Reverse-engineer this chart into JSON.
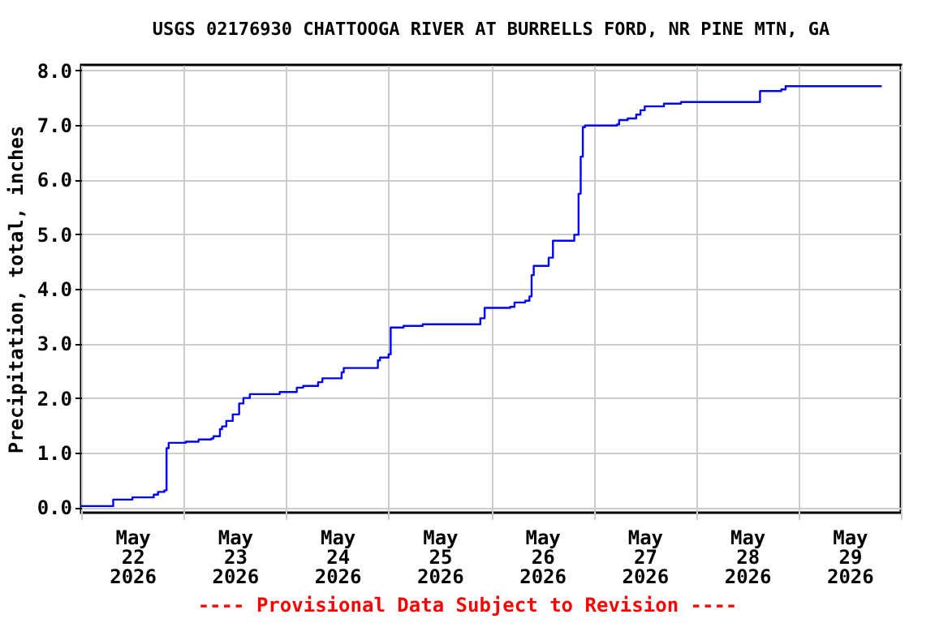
{
  "chart_data": {
    "type": "step",
    "title": "USGS 02176930 CHATTOOGA RIVER AT BURRELLS FORD, NR PINE MTN, GA",
    "ylabel": "Precipitation, total, inches",
    "annotations": [
      "---- Provisional Data Subject to Revision ----"
    ],
    "x": [
      "2026-05-22T00:00",
      "2026-05-22T07:30",
      "2026-05-22T12:00",
      "2026-05-22T17:00",
      "2026-05-22T18:00",
      "2026-05-22T19:30",
      "2026-05-22T20:00",
      "2026-05-22T20:30",
      "2026-05-23T00:30",
      "2026-05-23T03:30",
      "2026-05-23T06:30",
      "2026-05-23T07:00",
      "2026-05-23T08:30",
      "2026-05-23T09:00",
      "2026-05-23T10:00",
      "2026-05-23T11:30",
      "2026-05-23T13:00",
      "2026-05-23T14:00",
      "2026-05-23T15:30",
      "2026-05-23T22:30",
      "2026-05-24T02:30",
      "2026-05-24T04:00",
      "2026-05-24T07:30",
      "2026-05-24T08:30",
      "2026-05-24T13:00",
      "2026-05-24T13:30",
      "2026-05-24T21:30",
      "2026-05-24T22:00",
      "2026-05-25T00:00",
      "2026-05-25T00:30",
      "2026-05-25T03:30",
      "2026-05-25T08:00",
      "2026-05-25T21:30",
      "2026-05-25T22:30",
      "2026-05-26T04:30",
      "2026-05-26T05:30",
      "2026-05-26T08:00",
      "2026-05-26T09:00",
      "2026-05-26T09:30",
      "2026-05-26T10:00",
      "2026-05-26T13:30",
      "2026-05-26T14:30",
      "2026-05-26T19:30",
      "2026-05-26T20:30",
      "2026-05-26T21:00",
      "2026-05-26T21:30",
      "2026-05-26T22:00",
      "2026-05-27T05:30",
      "2026-05-27T06:00",
      "2026-05-27T08:00",
      "2026-05-27T10:00",
      "2026-05-27T11:00",
      "2026-05-27T12:00",
      "2026-05-27T16:30",
      "2026-05-27T20:30",
      "2026-05-28T15:00",
      "2026-05-28T20:00",
      "2026-05-28T21:00",
      "2026-05-29T19:30"
    ],
    "series": [
      {
        "color": "#0000ff",
        "values": [
          0.02,
          0.14,
          0.18,
          0.23,
          0.28,
          0.31,
          1.08,
          1.18,
          1.2,
          1.24,
          1.26,
          1.3,
          1.43,
          1.48,
          1.58,
          1.7,
          1.9,
          2.0,
          2.07,
          2.11,
          2.19,
          2.22,
          2.29,
          2.36,
          2.47,
          2.55,
          2.69,
          2.74,
          2.8,
          3.29,
          3.32,
          3.35,
          3.46,
          3.65,
          3.67,
          3.75,
          3.78,
          3.86,
          4.25,
          4.42,
          4.57,
          4.88,
          4.99,
          5.74,
          6.42,
          6.96,
          6.99,
          7.01,
          7.09,
          7.12,
          7.19,
          7.27,
          7.34,
          7.39,
          7.42,
          7.62,
          7.65,
          7.71,
          7.71
        ]
      }
    ],
    "xlim": [
      "2026-05-22T00:00",
      "2026-05-30T00:00"
    ],
    "xticks": [
      {
        "value": "2026-05-22T00:00",
        "label": null
      },
      {
        "value": "2026-05-23T00:00",
        "label": null
      },
      {
        "value": "2026-05-24T00:00",
        "label": null
      },
      {
        "value": "2026-05-25T00:00",
        "label": null
      },
      {
        "value": "2026-05-26T00:00",
        "label": null
      },
      {
        "value": "2026-05-27T00:00",
        "label": null
      },
      {
        "value": "2026-05-28T00:00",
        "label": null
      },
      {
        "value": "2026-05-29T00:00",
        "label": null
      },
      {
        "value": "2026-05-30T00:00",
        "label": null
      },
      {
        "value": "2026-05-22T12:00",
        "label": "May 22 2026"
      },
      {
        "value": "2026-05-23T12:00",
        "label": "May 23 2026"
      },
      {
        "value": "2026-05-24T12:00",
        "label": "May 24 2026"
      },
      {
        "value": "2026-05-25T12:00",
        "label": "May 25 2026"
      },
      {
        "value": "2026-05-26T12:00",
        "label": "May 26 2026"
      },
      {
        "value": "2026-05-27T12:00",
        "label": "May 27 2026"
      },
      {
        "value": "2026-05-28T12:00",
        "label": "May 28 2026"
      },
      {
        "value": "2026-05-29T12:00",
        "label": "May 29 2026"
      }
    ],
    "ylim": [
      -0.1,
      8.1
    ],
    "yticks": [
      {
        "value": 0,
        "label": "0.0"
      },
      {
        "value": 1,
        "label": "1.0"
      },
      {
        "value": 2,
        "label": "2.0"
      },
      {
        "value": 3,
        "label": "3.0"
      },
      {
        "value": 4,
        "label": "4.0"
      },
      {
        "value": 5,
        "label": "5.0"
      },
      {
        "value": 6,
        "label": "6.0"
      },
      {
        "value": 7,
        "label": "7.0"
      },
      {
        "value": 8,
        "label": "8.0"
      }
    ],
    "grid": true,
    "marker": "none"
  }
}
